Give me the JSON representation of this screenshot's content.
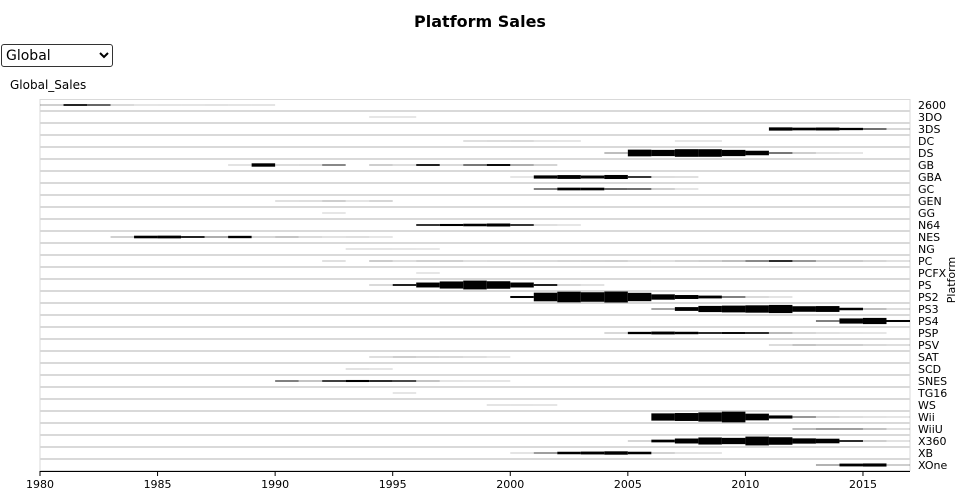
{
  "chart_data": {
    "type": "bar",
    "title": "Platform Sales",
    "dropdown": "Global",
    "y_axis_label": "Global_Sales",
    "right_axis_label": "Platform",
    "xlim": [
      1980,
      2017
    ],
    "xticks": [
      1980,
      1985,
      1990,
      1995,
      2000,
      2005,
      2010,
      2015
    ],
    "color": "#000000",
    "series": [
      {
        "name": "2600",
        "x": [
          1980,
          1981,
          1982,
          1983,
          1984,
          1985,
          1986,
          1987,
          1988,
          1989
        ],
        "values": [
          11.4,
          35.7,
          28.9,
          5.8,
          0.3,
          0.45,
          0.67,
          1.9,
          0.74,
          0.63
        ]
      },
      {
        "name": "3DO",
        "x": [
          1994,
          1995
        ],
        "values": [
          0.02,
          0.08
        ]
      },
      {
        "name": "3DS",
        "x": [
          2011,
          2012,
          2013,
          2014,
          2015,
          2016
        ],
        "values": [
          63,
          52,
          57,
          44,
          28,
          6.6
        ]
      },
      {
        "name": "DC",
        "x": [
          1998,
          1999,
          2000,
          2001,
          2002,
          2007,
          2008
        ],
        "values": [
          3.4,
          5.2,
          6,
          1.1,
          0.3,
          0.02,
          0.04
        ]
      },
      {
        "name": "DS",
        "x": [
          2004,
          2005,
          2006,
          2007,
          2008,
          2009,
          2010,
          2011,
          2012,
          2013,
          2014
        ],
        "values": [
          17,
          130,
          120,
          147,
          146,
          120,
          87,
          27,
          12,
          2,
          0.02
        ]
      },
      {
        "name": "GB",
        "x": [
          1988,
          1989,
          1990,
          1991,
          1992,
          1994,
          1995,
          1996,
          1997,
          1998,
          1999,
          2000,
          2001
        ],
        "values": [
          1.4,
          65,
          4.9,
          5.6,
          25,
          12,
          3.6,
          36,
          6.4,
          27,
          38,
          20,
          9.2
        ]
      },
      {
        "name": "GBA",
        "x": [
          2000,
          2001,
          2002,
          2003,
          2004,
          2005,
          2006,
          2007
        ],
        "values": [
          0.07,
          62,
          74,
          57,
          78,
          34,
          5.3,
          3.4
        ]
      },
      {
        "name": "GC",
        "x": [
          2001,
          2002,
          2003,
          2004,
          2005,
          2006,
          2007
        ],
        "values": [
          26,
          52,
          51,
          29,
          28,
          11,
          0.3
        ]
      },
      {
        "name": "GEN",
        "x": [
          1990,
          1991,
          1992,
          1993,
          1994
        ],
        "values": [
          2.6,
          4.3,
          12.6,
          0.65,
          8.1
        ]
      },
      {
        "name": "GG",
        "x": [
          1992
        ],
        "values": [
          0.04
        ]
      },
      {
        "name": "N64",
        "x": [
          1996,
          1997,
          1998,
          1999,
          2000,
          2001,
          2002
        ],
        "values": [
          34,
          40,
          49,
          58,
          34,
          3.3,
          0.08
        ]
      },
      {
        "name": "NES",
        "x": [
          1983,
          1984,
          1985,
          1986,
          1987,
          1988,
          1989,
          1990,
          1991,
          1992,
          1993,
          1994
        ],
        "values": [
          11,
          50,
          53,
          36,
          20,
          45,
          7.9,
          16,
          6.1,
          2,
          3.6,
          0.11
        ]
      },
      {
        "name": "NG",
        "x": [
          1993,
          1994,
          1995,
          1996
        ],
        "values": [
          0.2,
          0.8,
          0.3,
          0.1
        ]
      },
      {
        "name": "PC",
        "x": [
          1992,
          1994,
          1995,
          1996,
          1997,
          1998,
          1999,
          2000,
          2001,
          2002,
          2003,
          2004,
          2005,
          2006,
          2007,
          2008,
          2009,
          2010,
          2011,
          2012,
          2013,
          2014,
          2015,
          2016
        ],
        "values": [
          3,
          13,
          4.2,
          11,
          11,
          3.3,
          4.7,
          4.7,
          5.5,
          8.6,
          8.8,
          10,
          4.4,
          2.9,
          9.4,
          12,
          17,
          25,
          35,
          23,
          13,
          14,
          8.1,
          2.6
        ]
      },
      {
        "name": "PCFX",
        "x": [
          1996
        ],
        "values": [
          0.03
        ]
      },
      {
        "name": "PS",
        "x": [
          1994,
          1995,
          1996,
          1997,
          1998,
          1999,
          2000,
          2001,
          2002,
          2003
        ],
        "values": [
          6,
          36,
          95,
          137,
          170,
          145,
          96,
          36,
          6.7,
          2.1
        ]
      },
      {
        "name": "PS2",
        "x": [
          2000,
          2001,
          2002,
          2003,
          2004,
          2005,
          2006,
          2007,
          2008,
          2009,
          2010,
          2011
        ],
        "values": [
          39,
          166,
          205,
          184,
          212,
          161,
          103,
          76,
          54,
          26,
          5.6,
          0.45
        ]
      },
      {
        "name": "PS3",
        "x": [
          2006,
          2007,
          2008,
          2009,
          2010,
          2011,
          2012,
          2013,
          2014,
          2015,
          2016
        ],
        "values": [
          21,
          73,
          119,
          131,
          142,
          157,
          107,
          113,
          48,
          17,
          3.6
        ]
      },
      {
        "name": "PS4",
        "x": [
          2013,
          2014,
          2015,
          2016
        ],
        "values": [
          26,
          100,
          119,
          39
        ]
      },
      {
        "name": "PSP",
        "x": [
          2004,
          2005,
          2006,
          2007,
          2008,
          2009,
          2010,
          2011,
          2012,
          2013,
          2014,
          2015
        ],
        "values": [
          7.1,
          44,
          55,
          47,
          35,
          38,
          35,
          18,
          7.7,
          3.1,
          0.24,
          0.12
        ]
      },
      {
        "name": "PSV",
        "x": [
          2011,
          2012,
          2013,
          2014,
          2015,
          2016
        ],
        "values": [
          4.6,
          16,
          11,
          12,
          6.4,
          4.3
        ]
      },
      {
        "name": "SAT",
        "x": [
          1994,
          1995,
          1996,
          1997,
          1998,
          1999
        ],
        "values": [
          3.6,
          12,
          7.7,
          6.8,
          3.8,
          0.09
        ]
      },
      {
        "name": "SCD",
        "x": [
          1993,
          1994
        ],
        "values": [
          1.5,
          0.36
        ]
      },
      {
        "name": "SNES",
        "x": [
          1990,
          1991,
          1992,
          1993,
          1994,
          1995,
          1996,
          1997,
          1998,
          1999
        ],
        "values": [
          26,
          16,
          33,
          40,
          35,
          32,
          16,
          1,
          0.22,
          0.26
        ]
      },
      {
        "name": "TG16",
        "x": [
          1995
        ],
        "values": [
          0.16
        ]
      },
      {
        "name": "WS",
        "x": [
          1999,
          2000,
          2001
        ],
        "values": [
          0.46,
          0.68,
          0.28
        ]
      },
      {
        "name": "Wii",
        "x": [
          2006,
          2007,
          2008,
          2009,
          2010,
          2011,
          2012,
          2013,
          2014,
          2015,
          2016
        ],
        "values": [
          140,
          153,
          178,
          207,
          129,
          60,
          23,
          9.4,
          4.4,
          1.6,
          0.18
        ]
      },
      {
        "name": "WiiU",
        "x": [
          2012,
          2013,
          2014,
          2015,
          2016
        ],
        "values": [
          17.6,
          22,
          22,
          16.4,
          3.3
        ]
      },
      {
        "name": "X360",
        "x": [
          2005,
          2006,
          2007,
          2008,
          2009,
          2010,
          2011,
          2012,
          2013,
          2014,
          2015,
          2016
        ],
        "values": [
          8.3,
          52,
          96,
          136,
          121,
          171,
          145,
          101,
          89,
          35,
          12,
          1.5
        ]
      },
      {
        "name": "XB",
        "x": [
          2000,
          2001,
          2002,
          2003,
          2004,
          2005,
          2006,
          2007,
          2008
        ],
        "values": [
          1,
          22,
          48,
          55,
          65,
          49,
          10,
          0.55,
          0.18
        ]
      },
      {
        "name": "XOne",
        "x": [
          2013,
          2014,
          2015,
          2016
        ],
        "values": [
          19,
          54,
          60,
          12
        ]
      }
    ]
  }
}
